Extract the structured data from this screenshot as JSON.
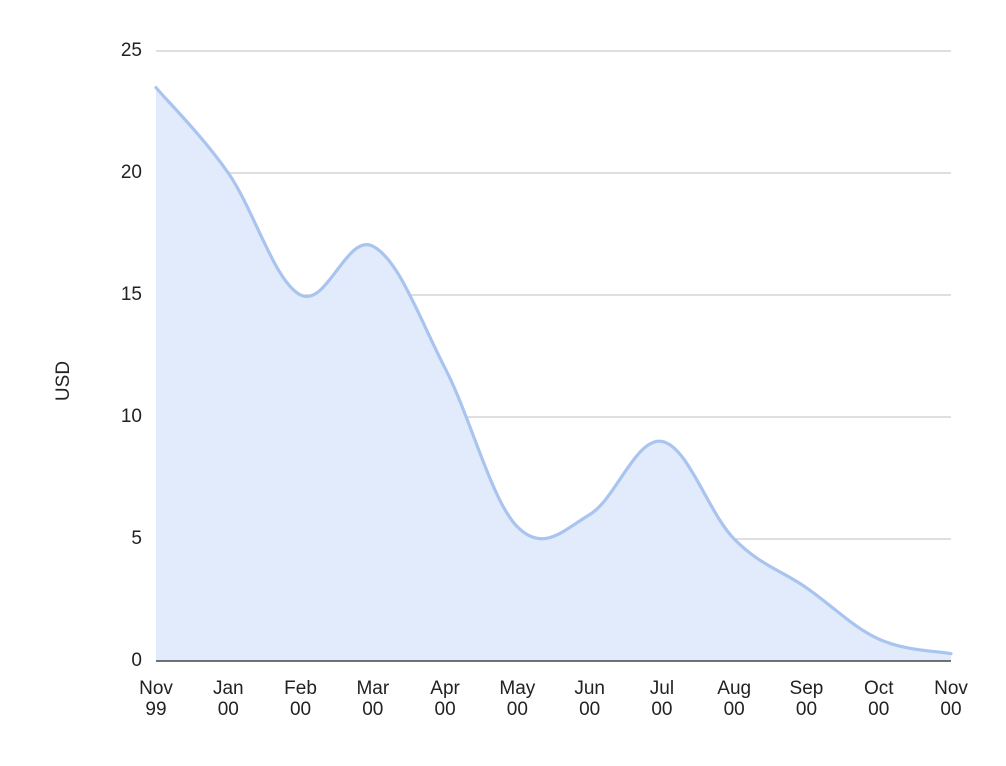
{
  "chart_data": {
    "type": "area",
    "title": "",
    "xlabel": "",
    "ylabel": "USD",
    "ylim": [
      0,
      25
    ],
    "yticks": [
      0,
      5,
      10,
      15,
      20,
      25
    ],
    "grid": true,
    "legend": "none",
    "colors": {
      "line": "#a9c4ef",
      "fill": "#e1ebfb",
      "grid": "#cccccc",
      "baseline": "#444444"
    },
    "x_ticks": [
      {
        "month": "Nov",
        "year": "99"
      },
      {
        "month": "Jan",
        "year": "00"
      },
      {
        "month": "Feb",
        "year": "00"
      },
      {
        "month": "Mar",
        "year": "00"
      },
      {
        "month": "Apr",
        "year": "00"
      },
      {
        "month": "May",
        "year": "00"
      },
      {
        "month": "Jun",
        "year": "00"
      },
      {
        "month": "Jul",
        "year": "00"
      },
      {
        "month": "Aug",
        "year": "00"
      },
      {
        "month": "Sep",
        "year": "00"
      },
      {
        "month": "Oct",
        "year": "00"
      },
      {
        "month": "Nov",
        "year": "00"
      }
    ],
    "series": [
      {
        "values": [
          23.5,
          20.0,
          15.0,
          17.0,
          12.0,
          5.5,
          6.0,
          9.0,
          5.0,
          3.0,
          0.9,
          0.3
        ]
      }
    ]
  }
}
